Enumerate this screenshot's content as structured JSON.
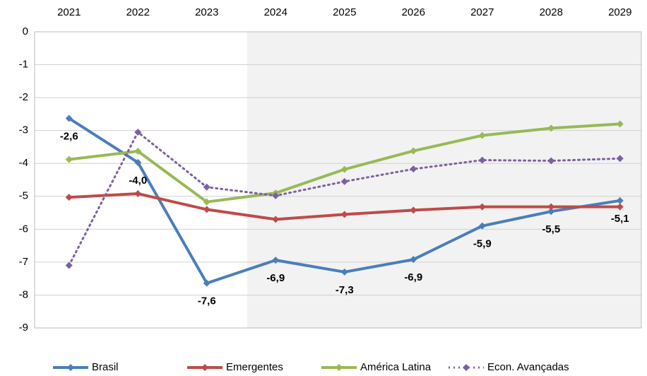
{
  "chart_data": {
    "type": "line",
    "categories": [
      "2021",
      "2022",
      "2023",
      "2024",
      "2025",
      "2026",
      "2027",
      "2028",
      "2029"
    ],
    "series": [
      {
        "name": "Brasil",
        "color": "#4a7ebb",
        "dash": false,
        "values": [
          -2.63,
          -3.97,
          -7.64,
          -6.94,
          -7.3,
          -6.92,
          -5.9,
          -5.46,
          -5.13
        ],
        "value_labels": [
          "-2,6",
          "-4,0",
          "-7,6",
          "-6,9",
          "-7,3",
          "-6,9",
          "-5,9",
          "-5,5",
          "-5,1"
        ]
      },
      {
        "name": "Emergentes",
        "color": "#be4b48",
        "dash": false,
        "values": [
          -5.03,
          -4.92,
          -5.4,
          -5.7,
          -5.55,
          -5.42,
          -5.32,
          -5.32,
          -5.32
        ]
      },
      {
        "name": "América Latina",
        "color": "#98b954",
        "dash": false,
        "values": [
          -3.88,
          -3.63,
          -5.17,
          -4.9,
          -4.18,
          -3.62,
          -3.15,
          -2.93,
          -2.8
        ]
      },
      {
        "name": "Econ. Avançadas",
        "color": "#7d60a0",
        "dash": true,
        "values": [
          -7.1,
          -3.05,
          -4.72,
          -4.98,
          -4.55,
          -4.17,
          -3.9,
          -3.92,
          -3.85
        ]
      }
    ],
    "ylim": [
      -9,
      0
    ],
    "yticks": [
      0,
      -1,
      -2,
      -3,
      -4,
      -5,
      -6,
      -7,
      -8,
      -9
    ],
    "grid": true,
    "legend": "bottom"
  }
}
